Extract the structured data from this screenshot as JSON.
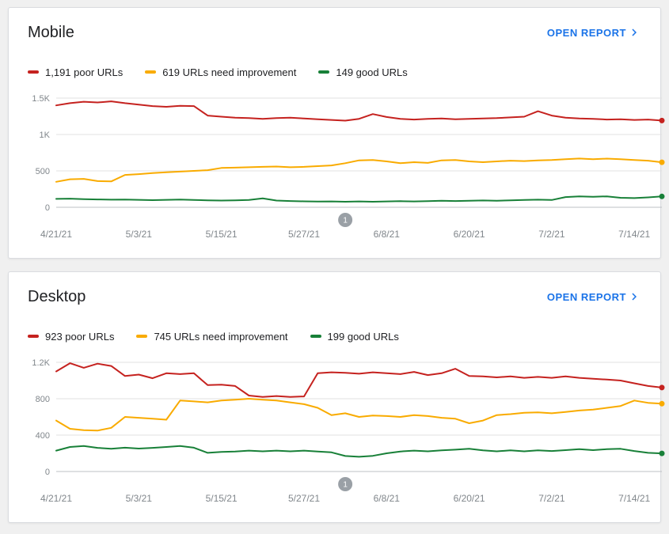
{
  "page": {
    "background": "#f0f0f0",
    "link_color": "#1a73e8"
  },
  "cards": [
    {
      "title": "Mobile",
      "open_report_label": "OPEN REPORT",
      "legend": [
        {
          "label": "1,191 poor URLs",
          "color": "#c5221f"
        },
        {
          "label": "619 URLs need improvement",
          "color": "#f9ab00"
        },
        {
          "label": "149 good URLs",
          "color": "#188038"
        }
      ],
      "chart_data": {
        "type": "line",
        "title": "Mobile Core Web Vitals URL counts over time",
        "x_ticks": [
          "4/21/21",
          "5/3/21",
          "5/15/21",
          "5/27/21",
          "6/8/21",
          "6/20/21",
          "7/2/21",
          "7/14/21"
        ],
        "x_tick_days": [
          0,
          12,
          24,
          36,
          48,
          60,
          72,
          84
        ],
        "x_max_day": 88,
        "ylim": [
          0,
          1500
        ],
        "y_ticks": [
          0,
          500,
          1000,
          1500
        ],
        "y_tick_labels": [
          "0",
          "500",
          "1K",
          "1.5K"
        ],
        "annotation": {
          "label": "1",
          "day": 42
        },
        "series": [
          {
            "name": "poor URLs",
            "color": "#c5221f",
            "end_value": 1191,
            "values": [
              1400,
              1430,
              1450,
              1440,
              1455,
              1430,
              1410,
              1390,
              1380,
              1395,
              1390,
              1260,
              1245,
              1230,
              1225,
              1215,
              1225,
              1230,
              1220,
              1210,
              1200,
              1190,
              1215,
              1280,
              1240,
              1215,
              1205,
              1215,
              1220,
              1210,
              1215,
              1220,
              1225,
              1235,
              1245,
              1320,
              1260,
              1230,
              1220,
              1215,
              1205,
              1210,
              1200,
              1205,
              1191
            ]
          },
          {
            "name": "URLs need improvement",
            "color": "#f9ab00",
            "end_value": 619,
            "values": [
              350,
              385,
              390,
              360,
              355,
              445,
              455,
              470,
              480,
              490,
              500,
              510,
              540,
              545,
              550,
              555,
              560,
              550,
              555,
              565,
              575,
              605,
              645,
              650,
              630,
              605,
              620,
              610,
              645,
              650,
              630,
              620,
              630,
              640,
              635,
              645,
              650,
              660,
              670,
              660,
              668,
              660,
              650,
              640,
              619
            ]
          },
          {
            "name": "good URLs",
            "color": "#188038",
            "end_value": 149,
            "values": [
              115,
              118,
              112,
              108,
              104,
              106,
              102,
              98,
              102,
              106,
              100,
              96,
              92,
              96,
              100,
              122,
              92,
              86,
              82,
              78,
              80,
              76,
              80,
              76,
              80,
              84,
              80,
              84,
              90,
              86,
              90,
              94,
              90,
              95,
              100,
              104,
              100,
              140,
              150,
              145,
              150,
              130,
              126,
              136,
              149
            ]
          }
        ]
      }
    },
    {
      "title": "Desktop",
      "open_report_label": "OPEN REPORT",
      "legend": [
        {
          "label": "923 poor URLs",
          "color": "#c5221f"
        },
        {
          "label": "745 URLs need improvement",
          "color": "#f9ab00"
        },
        {
          "label": "199 good URLs",
          "color": "#188038"
        }
      ],
      "chart_data": {
        "type": "line",
        "title": "Desktop Core Web Vitals URL counts over time",
        "x_ticks": [
          "4/21/21",
          "5/3/21",
          "5/15/21",
          "5/27/21",
          "6/8/21",
          "6/20/21",
          "7/2/21",
          "7/14/21"
        ],
        "x_tick_days": [
          0,
          12,
          24,
          36,
          48,
          60,
          72,
          84
        ],
        "x_max_day": 88,
        "ylim": [
          0,
          1200
        ],
        "y_ticks": [
          0,
          400,
          800,
          1200
        ],
        "y_tick_labels": [
          "0",
          "400",
          "800",
          "1.2K"
        ],
        "annotation": {
          "label": "1",
          "day": 42
        },
        "series": [
          {
            "name": "poor URLs",
            "color": "#c5221f",
            "end_value": 923,
            "values": [
              1100,
              1190,
              1140,
              1185,
              1160,
              1050,
              1065,
              1025,
              1080,
              1070,
              1080,
              950,
              955,
              940,
              835,
              820,
              830,
              820,
              825,
              1080,
              1090,
              1085,
              1075,
              1090,
              1080,
              1070,
              1095,
              1060,
              1080,
              1130,
              1050,
              1045,
              1035,
              1045,
              1030,
              1040,
              1030,
              1045,
              1030,
              1020,
              1010,
              1000,
              970,
              940,
              923
            ]
          },
          {
            "name": "URLs need improvement",
            "color": "#f9ab00",
            "end_value": 745,
            "values": [
              560,
              470,
              455,
              450,
              480,
              600,
              590,
              580,
              570,
              780,
              770,
              760,
              780,
              790,
              800,
              790,
              780,
              760,
              740,
              700,
              620,
              640,
              600,
              615,
              610,
              600,
              620,
              610,
              590,
              580,
              530,
              560,
              620,
              630,
              645,
              650,
              640,
              655,
              670,
              680,
              700,
              720,
              780,
              755,
              745
            ]
          },
          {
            "name": "good URLs",
            "color": "#188038",
            "end_value": 199,
            "values": [
              230,
              270,
              280,
              260,
              250,
              262,
              252,
              260,
              270,
              280,
              262,
              205,
              215,
              220,
              230,
              222,
              230,
              222,
              230,
              220,
              210,
              170,
              162,
              172,
              200,
              220,
              230,
              222,
              232,
              240,
              250,
              232,
              222,
              232,
              222,
              232,
              225,
              235,
              245,
              235,
              245,
              250,
              225,
              205,
              199
            ]
          }
        ]
      }
    }
  ]
}
